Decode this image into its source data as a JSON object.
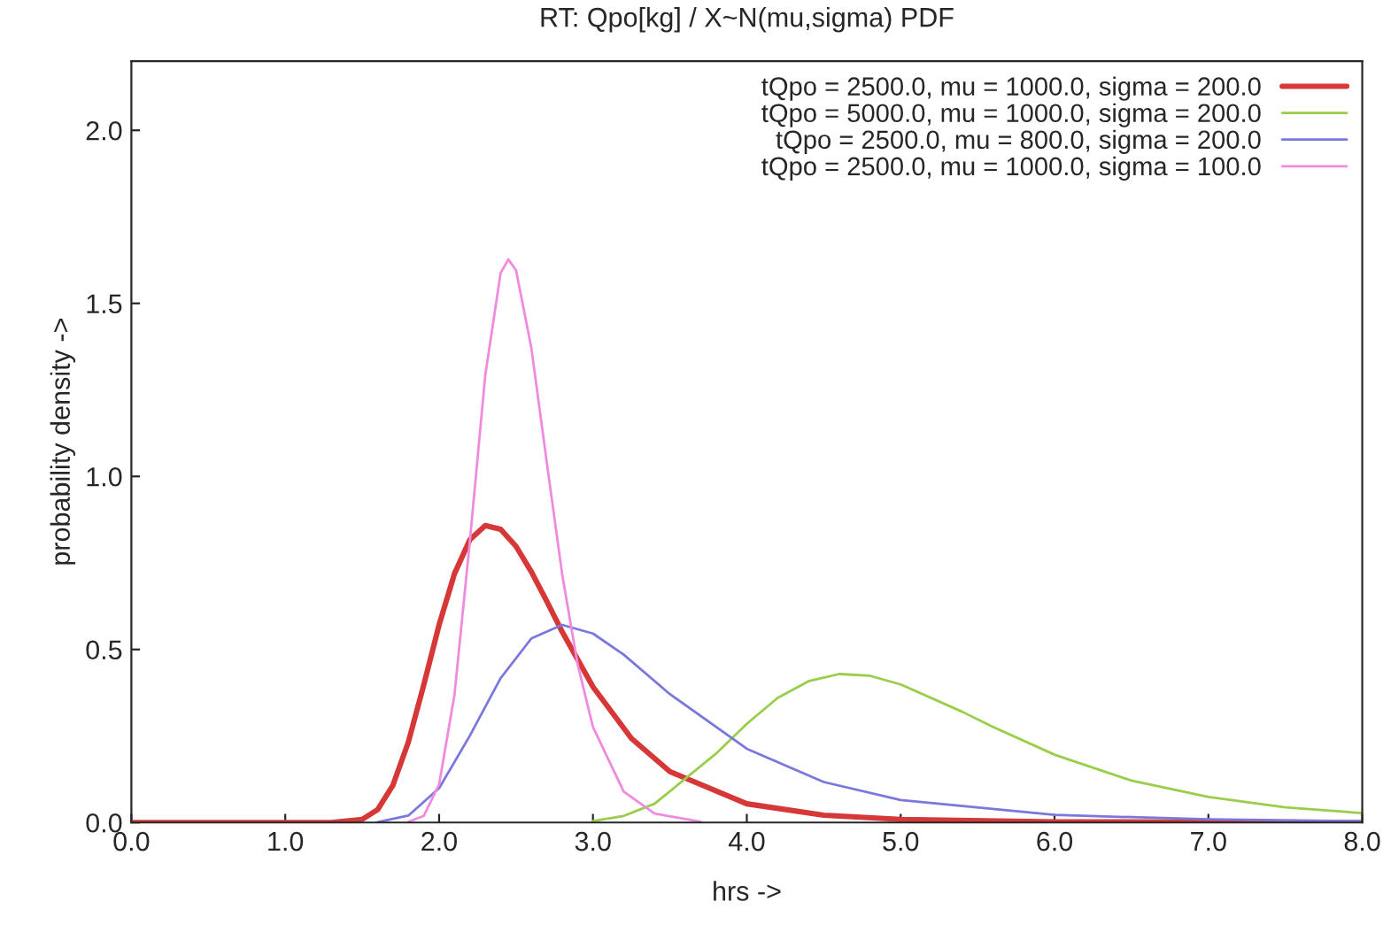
{
  "chart_data": {
    "type": "line",
    "title": "RT: Qpo[kg] / X~N(mu,sigma) PDF",
    "xlabel": "hrs ->",
    "ylabel": "probability density ->",
    "series": [
      {
        "name": "tQpo = 2500.0, mu = 1000.0, sigma = 200.0",
        "color": "#d63838",
        "x": [
          0,
          1.0,
          1.3,
          1.5,
          1.6,
          1.7,
          1.8,
          1.9,
          2.0,
          2.1,
          2.2,
          2.3,
          2.4,
          2.5,
          2.6,
          2.7,
          2.8,
          3.0,
          3.25,
          3.5,
          4.0,
          4.5,
          5.0,
          6.0,
          7.0,
          8.0
        ],
        "values": [
          0,
          0,
          0,
          0.009,
          0.037,
          0.108,
          0.232,
          0.397,
          0.571,
          0.719,
          0.817,
          0.858,
          0.847,
          0.798,
          0.724,
          0.639,
          0.551,
          0.392,
          0.243,
          0.147,
          0.054,
          0.021,
          0.009,
          0.002,
          0.001,
          0
        ]
      },
      {
        "name": "tQpo = 5000.0, mu = 1000.0, sigma = 200.0",
        "color": "#9acd4a",
        "x": [
          3.0,
          3.2,
          3.4,
          3.8,
          4.0,
          4.2,
          4.4,
          4.6,
          4.8,
          5.0,
          5.4,
          5.6,
          6.0,
          6.5,
          7.0,
          7.5,
          8.0
        ],
        "values": [
          0.004,
          0.019,
          0.054,
          0.199,
          0.285,
          0.36,
          0.408,
          0.429,
          0.424,
          0.399,
          0.32,
          0.276,
          0.196,
          0.121,
          0.074,
          0.044,
          0.027
        ]
      },
      {
        "name": "tQpo = 2500.0, mu = 800.0, sigma = 200.0",
        "color": "#7a78dc",
        "x": [
          1.6,
          1.8,
          2.0,
          2.2,
          2.4,
          2.6,
          2.8,
          3.0,
          3.2,
          3.5,
          4.0,
          4.5,
          5.0,
          6.0,
          7.0,
          8.0
        ],
        "values": [
          0.001,
          0.02,
          0.099,
          0.251,
          0.417,
          0.532,
          0.571,
          0.546,
          0.485,
          0.371,
          0.213,
          0.117,
          0.065,
          0.022,
          0.009,
          0.004
        ]
      },
      {
        "name": "tQpo = 2500.0, mu = 1000.0, sigma = 100.0",
        "color": "#f08ade",
        "x": [
          1.8,
          1.9,
          2.0,
          2.1,
          2.2,
          2.3,
          2.4,
          2.45,
          2.5,
          2.6,
          2.7,
          2.8,
          2.9,
          3.0,
          3.2,
          3.4,
          3.7
        ],
        "values": [
          0.002,
          0.019,
          0.11,
          0.369,
          0.813,
          1.292,
          1.588,
          1.627,
          1.596,
          1.37,
          1.04,
          0.717,
          0.458,
          0.276,
          0.089,
          0.026,
          0.002
        ]
      }
    ],
    "xlim": [
      0,
      8
    ],
    "ylim": [
      0,
      2.2
    ],
    "xticks": [
      {
        "value": 0,
        "label": "0.0"
      },
      {
        "value": 1,
        "label": "1.0"
      },
      {
        "value": 2,
        "label": "2.0"
      },
      {
        "value": 3,
        "label": "3.0"
      },
      {
        "value": 4,
        "label": "4.0"
      },
      {
        "value": 5,
        "label": "5.0"
      },
      {
        "value": 6,
        "label": "6.0"
      },
      {
        "value": 7,
        "label": "7.0"
      },
      {
        "value": 8,
        "label": "8.0"
      }
    ],
    "yticks": [
      {
        "value": 0,
        "label": "0.0"
      },
      {
        "value": 0.5,
        "label": "0.5"
      },
      {
        "value": 1.0,
        "label": "1.0"
      },
      {
        "value": 1.5,
        "label": "1.5"
      },
      {
        "value": 2.0,
        "label": "2.0"
      }
    ],
    "legend": "top right",
    "grid": false
  }
}
